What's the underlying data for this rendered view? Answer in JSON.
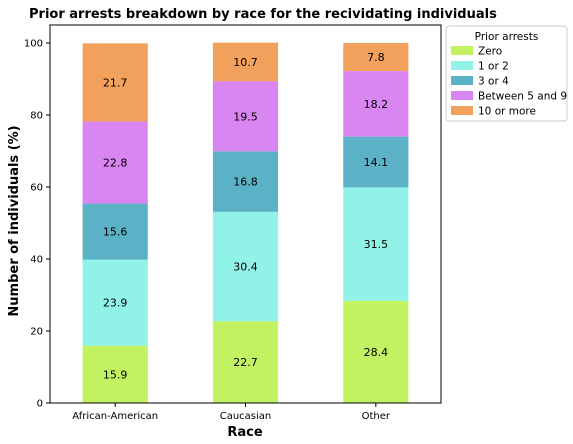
{
  "chart_data": {
    "type": "bar",
    "stacked": true,
    "title": "Prior arrests breakdown by race for the recividating individuals",
    "xlabel": "Race",
    "ylabel": "Number of individuals (%)",
    "ylim": [
      0,
      105
    ],
    "yticks": [
      0,
      20,
      40,
      60,
      80,
      100
    ],
    "grid": false,
    "legend": {
      "title": "Prior arrests",
      "placement": "outside-top-right"
    },
    "categories": [
      "African-American",
      "Caucasian",
      "Other"
    ],
    "series": [
      {
        "name": "Zero",
        "color": "#c2f261",
        "values": [
          15.9,
          22.7,
          28.4
        ]
      },
      {
        "name": "1 or 2",
        "color": "#91f2e8",
        "values": [
          23.9,
          30.4,
          31.5
        ]
      },
      {
        "name": "3 or 4",
        "color": "#5bb2c7",
        "values": [
          15.6,
          16.8,
          14.1
        ]
      },
      {
        "name": "Between 5 and 9",
        "color": "#d985f2",
        "values": [
          22.8,
          19.5,
          18.2
        ]
      },
      {
        "name": "10 or more",
        "color": "#f2a15c",
        "values": [
          21.7,
          10.7,
          7.8
        ]
      }
    ]
  }
}
